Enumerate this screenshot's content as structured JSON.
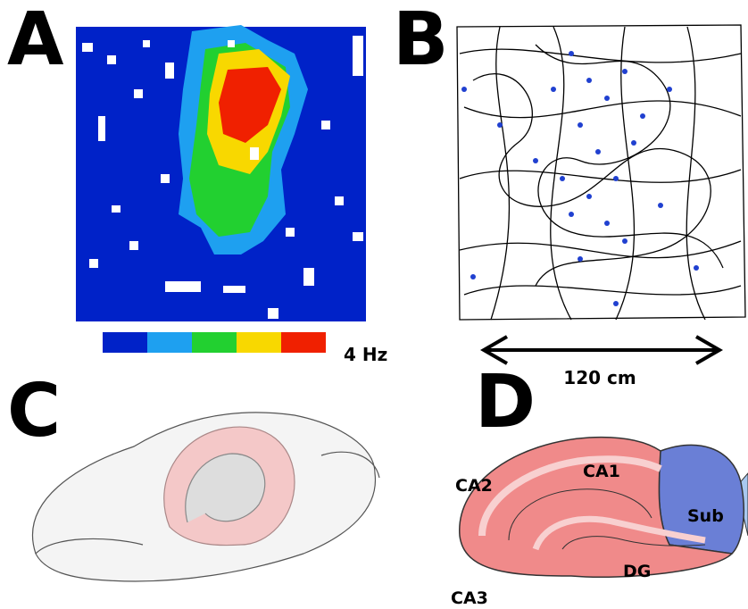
{
  "panels": {
    "a": {
      "letter": "A",
      "colorbar_label": "4 Hz"
    },
    "b": {
      "letter": "B",
      "scale_label": "120 cm"
    },
    "c": {
      "letter": "C"
    },
    "d": {
      "letter": "D",
      "regions": {
        "ca1": "CA1",
        "ca2": "CA2",
        "ca3": "CA3",
        "dg": "DG",
        "sub": "Sub"
      }
    }
  }
}
